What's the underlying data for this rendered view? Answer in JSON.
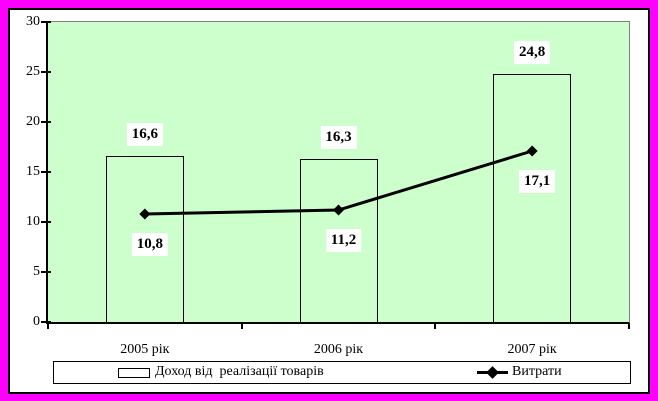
{
  "chart_data": {
    "type": "bar",
    "combo_types": [
      "bar",
      "line"
    ],
    "categories": [
      "2005 рік",
      "2006 рік",
      "2007 рік"
    ],
    "series": [
      {
        "name": "Доход від  реалізації товарів",
        "type": "bar",
        "values": [
          16.6,
          16.3,
          24.8
        ],
        "labels": [
          "16,6",
          "16,3",
          "24,8"
        ],
        "fill": "none",
        "border_color": "#000000"
      },
      {
        "name": "Витрати",
        "type": "line",
        "values": [
          10.8,
          11.2,
          17.1
        ],
        "labels": [
          "10,8",
          "11,2",
          "17,1"
        ],
        "color": "#000000",
        "marker": "diamond"
      }
    ],
    "title": "",
    "xlabel": "",
    "ylabel": "",
    "ylim": [
      0,
      30
    ],
    "yticks": [
      0,
      5,
      10,
      15,
      20,
      25,
      30
    ],
    "ytick_labels": [
      "0",
      "5",
      "10",
      "15",
      "20",
      "25",
      "30"
    ],
    "grid": false,
    "legend_position": "bottom",
    "colors": {
      "page_border": "#ff00ff",
      "plot_background": "#ccffcc",
      "plot_border_gray": "#808080",
      "axis": "#000000",
      "series": "#000000",
      "value_label_background": "#ffffff"
    }
  }
}
